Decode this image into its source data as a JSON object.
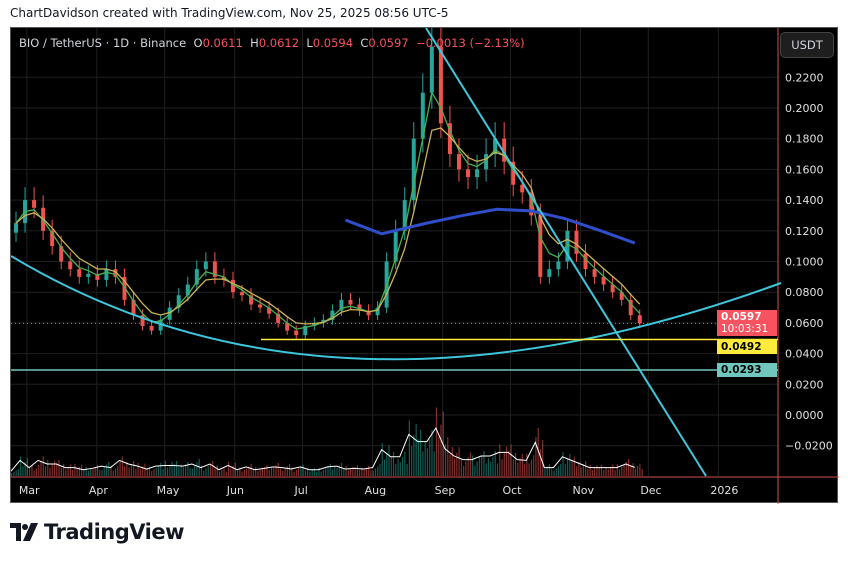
{
  "credit": "ChartDavidson created with TradingView.com, Nov 25, 2025 08:56 UTC-5",
  "legend": {
    "symbol": "BIO / TetherUS · 1D · Binance",
    "o_label": "O",
    "o": "0.0611",
    "h_label": "H",
    "h": "0.0612",
    "l_label": "L",
    "l": "0.0594",
    "c_label": "C",
    "c": "0.0597",
    "change": "−0.0013 (−2.13%)"
  },
  "currency_button": "USDT",
  "tags": {
    "last_price": "0.0597",
    "countdown": "10:03:31",
    "support": "0.0492",
    "support2": "0.0293"
  },
  "colors": {
    "up": "#26a69a",
    "down": "#ef5350",
    "ema_fast": "#4caf50",
    "ema_slow": "#c9b458",
    "ma_long": "#2e4fc9",
    "trend": "#3ec6dc",
    "support": "#ffeb3b"
  },
  "brand": "TradingView",
  "chart_data": {
    "type": "candlestick",
    "title": "BIO / TetherUS · 1D · Binance",
    "ylim": [
      -0.03,
      0.26
    ],
    "y_ticks": [
      "0.2200",
      "0.2000",
      "0.1800",
      "0.1600",
      "0.1400",
      "0.1200",
      "0.1000",
      "0.0800",
      "0.0600",
      "0.0400",
      "0.0200",
      "0.0000",
      "−0.0200"
    ],
    "y_tick_values": [
      0.22,
      0.2,
      0.18,
      0.16,
      0.14,
      0.12,
      0.1,
      0.08,
      0.06,
      0.04,
      0.02,
      0,
      -0.02
    ],
    "x_ticks": [
      "Mar",
      "Apr",
      "May",
      "Jun",
      "Jul",
      "Aug",
      "Sep",
      "Oct",
      "Nov",
      "Dec",
      "2026"
    ],
    "x_tick_days": [
      7,
      38,
      68,
      99,
      129,
      160,
      191,
      221,
      252,
      282,
      313
    ],
    "start": "Feb 22",
    "step_days": 4,
    "closes": [
      0.125,
      0.14,
      0.135,
      0.12,
      0.11,
      0.1,
      0.095,
      0.09,
      0.092,
      0.088,
      0.095,
      0.09,
      0.075,
      0.065,
      0.058,
      0.055,
      0.062,
      0.07,
      0.078,
      0.085,
      0.095,
      0.1,
      0.09,
      0.088,
      0.08,
      0.078,
      0.072,
      0.07,
      0.066,
      0.06,
      0.055,
      0.052,
      0.058,
      0.06,
      0.062,
      0.068,
      0.075,
      0.072,
      0.068,
      0.065,
      0.07,
      0.1,
      0.12,
      0.14,
      0.18,
      0.21,
      0.24,
      0.19,
      0.17,
      0.16,
      0.155,
      0.16,
      0.17,
      0.18,
      0.165,
      0.15,
      0.145,
      0.13,
      0.09,
      0.095,
      0.1,
      0.12,
      0.105,
      0.095,
      0.09,
      0.085,
      0.08,
      0.075,
      0.065,
      0.0597
    ],
    "ma_long": {
      "days": [
        148,
        164,
        184,
        200,
        215,
        230,
        245,
        261,
        276
      ],
      "values": [
        0.127,
        0.118,
        0.125,
        0.13,
        0.134,
        0.133,
        0.128,
        0.12,
        0.112
      ]
    },
    "horizontal_levels": [
      0.0492,
      0.0293
    ],
    "last_price": 0.0597
  }
}
